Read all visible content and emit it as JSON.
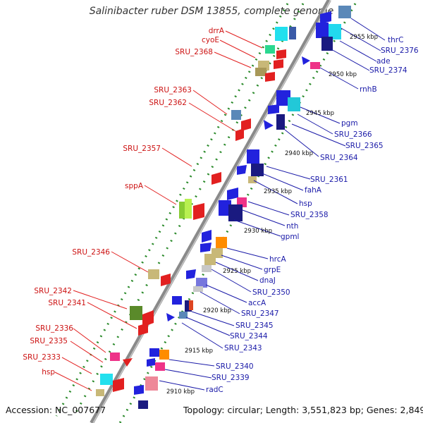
{
  "title": "Salinibacter ruber DSM 13855, complete genome",
  "accession": "Accession: NC_007677",
  "topology": "Topology: circular; Length: 3,551,823 bp; Genes: 2,849",
  "colors": {
    "left_label": "#cc1111",
    "right_label": "#1a1aa8",
    "axis": "#888888",
    "dots": "#2a8a2a",
    "forward": "#2222dd"
  },
  "ticks": [
    "2955 kbp",
    "2950 kbp",
    "2945 kbp",
    "2940 kbp",
    "2935 kbp",
    "2930 kbp",
    "2925 kbp",
    "2920 kbp",
    "2915 kbp",
    "2910 kbp"
  ],
  "left_genes": [
    "drrA",
    "cyoE",
    "SRU_2368",
    "SRU_2363",
    "SRU_2362",
    "SRU_2357",
    "sppA",
    "SRU_2346",
    "SRU_2342",
    "SRU_2341",
    "SRU_2336",
    "SRU_2335",
    "SRU_2333",
    "hsp"
  ],
  "right_genes": [
    "thrC",
    "SRU_2376",
    "ade",
    "SRU_2374",
    "rnhB",
    "pgm",
    "SRU_2366",
    "SRU_2365",
    "SRU_2364",
    "SRU_2361",
    "fahA",
    "hsp",
    "SRU_2358",
    "nth",
    "gpml",
    "hrcA",
    "grpE",
    "dnaJ",
    "SRU_2350",
    "accA",
    "SRU_2347",
    "SRU_2345",
    "SRU_2344",
    "SRU_2343",
    "SRU_2340",
    "SRU_2339",
    "radC"
  ]
}
